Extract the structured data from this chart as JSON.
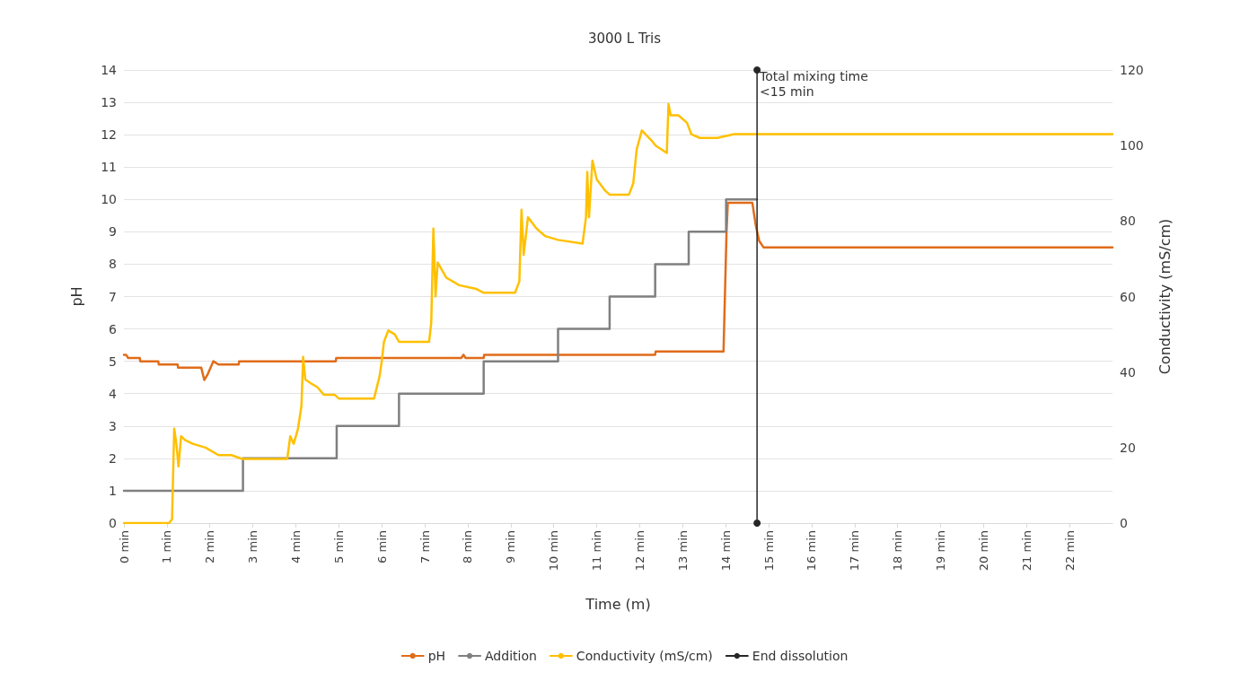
{
  "chart_data": {
    "type": "line",
    "title": "3000 L Tris",
    "xlabel": "Time (m)",
    "ylabel": "pH",
    "y2label": "Conductivity (mS/cm)",
    "xlim": [
      0,
      23
    ],
    "xticks": [
      {
        "value": 0,
        "label": "0 min"
      },
      {
        "value": 1,
        "label": "1 min"
      },
      {
        "value": 2,
        "label": "2 min"
      },
      {
        "value": 3,
        "label": "3 min"
      },
      {
        "value": 4,
        "label": "4 min"
      },
      {
        "value": 5,
        "label": "5 min"
      },
      {
        "value": 6,
        "label": "6 min"
      },
      {
        "value": 7,
        "label": "7 min"
      },
      {
        "value": 8,
        "label": "8 min"
      },
      {
        "value": 9,
        "label": "9 min"
      },
      {
        "value": 10,
        "label": "10 min"
      },
      {
        "value": 11,
        "label": "11 min"
      },
      {
        "value": 12,
        "label": "12 min"
      },
      {
        "value": 13,
        "label": "13 min"
      },
      {
        "value": 14,
        "label": "14 min"
      },
      {
        "value": 15,
        "label": "15 min"
      },
      {
        "value": 16,
        "label": "16 min"
      },
      {
        "value": 17,
        "label": "17 min"
      },
      {
        "value": 18,
        "label": "18 min"
      },
      {
        "value": 19,
        "label": "19 min"
      },
      {
        "value": 20,
        "label": "20 min"
      },
      {
        "value": 21,
        "label": "21 min"
      },
      {
        "value": 22,
        "label": "22 min"
      }
    ],
    "ylim": [
      0,
      14
    ],
    "yticks": [
      0,
      1,
      2,
      3,
      4,
      5,
      6,
      7,
      8,
      9,
      10,
      11,
      12,
      13,
      14
    ],
    "y2lim": [
      0,
      120
    ],
    "y2ticks": [
      0,
      20,
      40,
      60,
      80,
      100,
      120
    ],
    "grid": "y",
    "legend": "bottom",
    "marker": "none",
    "line_style": "solid",
    "annotations": [
      {
        "text": "Total mixing time\n<15 min",
        "x": 14.73,
        "y": 14
      }
    ],
    "series": [
      {
        "name": "pH",
        "color": "#e06c1a",
        "x": [
          0,
          0.05,
          0.1,
          0.37,
          0.38,
          0.8,
          0.81,
          1.25,
          1.26,
          1.8,
          1.87,
          1.95,
          2.08,
          2.2,
          2.3,
          2.67,
          2.68,
          4.93,
          4.94,
          7.85,
          7.9,
          7.95,
          8.37,
          8.38,
          12.36,
          12.37,
          13.95,
          14.02,
          14.05,
          14.62,
          14.7,
          14.78,
          14.88,
          23
        ],
        "values": [
          5.2,
          5.2,
          5.1,
          5.1,
          5.0,
          5.0,
          4.9,
          4.9,
          4.8,
          4.8,
          4.42,
          4.6,
          5.0,
          4.9,
          4.9,
          4.9,
          5.0,
          5.0,
          5.1,
          5.1,
          5.2,
          5.1,
          5.1,
          5.2,
          5.2,
          5.3,
          5.3,
          9.0,
          9.9,
          9.9,
          9.2,
          8.72,
          8.52,
          8.52
        ]
      },
      {
        "name": "Addition",
        "type": "step",
        "color": "#808080",
        "x": [
          0,
          2.77,
          4.95,
          6.4,
          8.37,
          10.1,
          11.3,
          12.36,
          13.14,
          14.01,
          14.73
        ],
        "values": [
          1,
          2,
          3,
          4,
          5,
          6,
          7,
          8,
          9,
          10,
          10
        ]
      },
      {
        "name": "Conductivity (mS/cm)",
        "axis": "y2",
        "color": "#ffc000",
        "x": [
          0,
          1.05,
          1.12,
          1.17,
          1.22,
          1.27,
          1.33,
          1.42,
          1.6,
          1.9,
          2.2,
          2.5,
          2.75,
          2.8,
          3.8,
          3.87,
          3.95,
          4.05,
          4.13,
          4.17,
          4.22,
          4.35,
          4.5,
          4.65,
          4.9,
          5.0,
          5.82,
          5.95,
          6.0,
          6.05,
          6.15,
          6.3,
          6.4,
          7.1,
          7.15,
          7.2,
          7.25,
          7.3,
          7.5,
          7.8,
          8.2,
          8.37,
          9.1,
          9.2,
          9.25,
          9.3,
          9.4,
          9.6,
          9.8,
          10.1,
          10.67,
          10.75,
          10.78,
          10.82,
          10.9,
          11.0,
          11.2,
          11.3,
          11.75,
          11.85,
          11.93,
          12.05,
          12.3,
          12.37,
          12.63,
          12.67,
          12.72,
          12.9,
          13.1,
          13.2,
          13.4,
          13.8,
          14.2,
          23
        ],
        "values": [
          0,
          0,
          1,
          25,
          21,
          15,
          23,
          22,
          21,
          20,
          18,
          18,
          17,
          17,
          17,
          23,
          21,
          25,
          31,
          44,
          38,
          37,
          36,
          34,
          34,
          33,
          33,
          39,
          43,
          48,
          51,
          50,
          48,
          48,
          53,
          78,
          60,
          69,
          65,
          63,
          62,
          61,
          61,
          64,
          83,
          71,
          81,
          78,
          76,
          75,
          74,
          81,
          93,
          81,
          96,
          91,
          88,
          87,
          87,
          90,
          99,
          104,
          101,
          100,
          98,
          111,
          108,
          108,
          106,
          103,
          102,
          102,
          103,
          103
        ]
      },
      {
        "name": "End dissolution",
        "color": "#262626",
        "marker": "circle",
        "x": [
          14.73,
          14.73
        ],
        "values": [
          0,
          14
        ]
      }
    ]
  }
}
